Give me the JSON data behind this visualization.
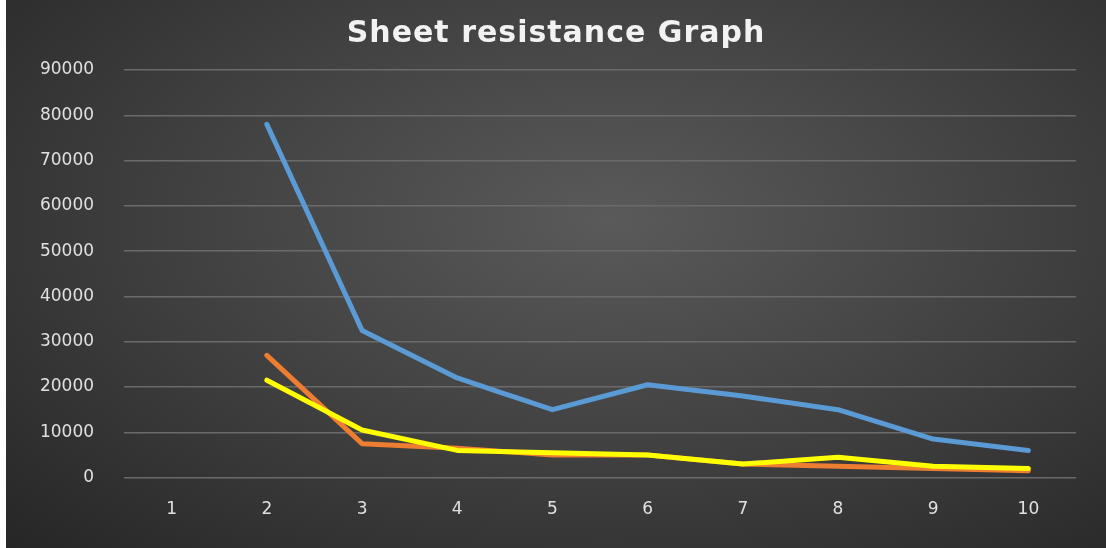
{
  "chart_data": {
    "type": "line",
    "title": "Sheet resistance Graph",
    "categories": [
      "1",
      "2",
      "3",
      "4",
      "5",
      "6",
      "7",
      "8",
      "9",
      "10"
    ],
    "series": [
      {
        "color": "#5b9bd5",
        "values": [
          null,
          78000,
          32500,
          22000,
          15000,
          20500,
          18000,
          15000,
          8500,
          6000
        ]
      },
      {
        "color": "#ed7d31",
        "values": [
          null,
          27000,
          7500,
          6500,
          5000,
          5000,
          3000,
          2500,
          2000,
          1500
        ]
      },
      {
        "color": "#ffff00",
        "values": [
          null,
          21500,
          10500,
          6000,
          5500,
          5000,
          3000,
          4500,
          2500,
          2000
        ]
      }
    ],
    "ylim": [
      0,
      90000
    ],
    "yticks": [
      0,
      10000,
      20000,
      30000,
      40000,
      50000,
      60000,
      70000,
      80000,
      90000
    ],
    "grid": "y",
    "legend": false,
    "marker": "none",
    "line_style": "solid"
  }
}
